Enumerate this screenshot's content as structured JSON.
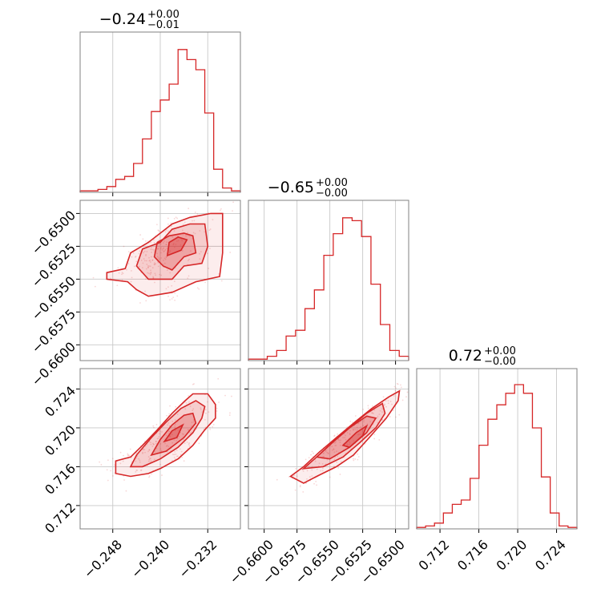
{
  "colors": {
    "accent": "#d62728",
    "fill": "#f2b7b8",
    "frame": "#808080",
    "grid": "#c8c8c8"
  },
  "chart_data": {
    "type": "corner",
    "grid": true,
    "parameters": [
      {
        "title": {
          "value": "−0.24",
          "plus": "+0.00",
          "minus": "−0.01"
        },
        "range": [
          -0.2535,
          -0.2265
        ],
        "ticks": [
          -0.248,
          -0.24,
          -0.232
        ],
        "tick_labels": [
          "−0.248",
          "−0.240",
          "−0.232"
        ],
        "histogram": [
          0.01,
          0.01,
          0.02,
          0.04,
          0.09,
          0.11,
          0.2,
          0.37,
          0.56,
          0.64,
          0.75,
          0.99,
          0.92,
          0.85,
          0.55,
          0.16,
          0.03,
          0.01
        ]
      },
      {
        "title": {
          "value": "−0.65",
          "plus": "+0.00",
          "minus": "−0.00"
        },
        "range": [
          -0.6612,
          -0.649
        ],
        "ticks": [
          -0.66,
          -0.6575,
          -0.655,
          -0.6525,
          -0.65
        ],
        "tick_labels": [
          "−0.6600",
          "−0.6575",
          "−0.6550",
          "−0.6525",
          "−0.6500"
        ],
        "histogram": [
          0.01,
          0.01,
          0.03,
          0.07,
          0.17,
          0.21,
          0.36,
          0.49,
          0.73,
          0.88,
          0.99,
          0.97,
          0.86,
          0.53,
          0.25,
          0.07,
          0.03
        ]
      },
      {
        "title": {
          "value": "0.72",
          "plus": "+0.00",
          "minus": "−0.00"
        },
        "range": [
          0.7096,
          0.7261
        ],
        "ticks": [
          0.712,
          0.716,
          0.72,
          0.724
        ],
        "tick_labels": [
          "0.712",
          "0.716",
          "0.720",
          "0.724"
        ],
        "histogram": [
          0.01,
          0.02,
          0.04,
          0.11,
          0.17,
          0.2,
          0.35,
          0.58,
          0.76,
          0.86,
          0.94,
          1.0,
          0.94,
          0.7,
          0.36,
          0.11,
          0.02,
          0.01
        ]
      }
    ],
    "pairs": [
      {
        "x": 0,
        "y": 1,
        "contours": [
          [
            [
              -0.2459,
              -0.6542
            ],
            [
              -0.245,
              -0.653
            ],
            [
              -0.242,
              -0.6522
            ],
            [
              -0.24,
              -0.6515
            ],
            [
              -0.238,
              -0.6508
            ],
            [
              -0.235,
              -0.6503
            ],
            [
              -0.2315,
              -0.65
            ],
            [
              -0.2295,
              -0.65
            ],
            [
              -0.2295,
              -0.653
            ],
            [
              -0.23,
              -0.6548
            ],
            [
              -0.234,
              -0.6552
            ],
            [
              -0.238,
              -0.656
            ],
            [
              -0.242,
              -0.6563
            ],
            [
              -0.244,
              -0.6558
            ],
            [
              -0.2455,
              -0.6552
            ],
            [
              -0.249,
              -0.655
            ],
            [
              -0.249,
              -0.6545
            ]
          ],
          [
            [
              -0.244,
              -0.654
            ],
            [
              -0.243,
              -0.6527
            ],
            [
              -0.24,
              -0.6522
            ],
            [
              -0.238,
              -0.6512
            ],
            [
              -0.235,
              -0.6508
            ],
            [
              -0.2325,
              -0.6508
            ],
            [
              -0.232,
              -0.6525
            ],
            [
              -0.233,
              -0.6538
            ],
            [
              -0.236,
              -0.654
            ],
            [
              -0.238,
              -0.655
            ],
            [
              -0.242,
              -0.655
            ]
          ],
          [
            [
              -0.241,
              -0.6533
            ],
            [
              -0.2405,
              -0.6522
            ],
            [
              -0.2385,
              -0.6517
            ],
            [
              -0.236,
              -0.6515
            ],
            [
              -0.2345,
              -0.6517
            ],
            [
              -0.234,
              -0.653
            ],
            [
              -0.236,
              -0.6533
            ],
            [
              -0.238,
              -0.6543
            ],
            [
              -0.2395,
              -0.654
            ]
          ],
          [
            [
              -0.2388,
              -0.6532
            ],
            [
              -0.2385,
              -0.6522
            ],
            [
              -0.237,
              -0.6518
            ],
            [
              -0.2355,
              -0.652
            ],
            [
              -0.2365,
              -0.6528
            ]
          ]
        ]
      },
      {
        "x": 0,
        "y": 2,
        "contours": [
          [
            [
              -0.2475,
              0.7153
            ],
            [
              -0.2475,
              0.7166
            ],
            [
              -0.245,
              0.717
            ],
            [
              -0.243,
              0.7182
            ],
            [
              -0.2405,
              0.7198
            ],
            [
              -0.238,
              0.7215
            ],
            [
              -0.2358,
              0.7228
            ],
            [
              -0.2345,
              0.7235
            ],
            [
              -0.232,
              0.7235
            ],
            [
              -0.2307,
              0.7224
            ],
            [
              -0.2307,
              0.721
            ],
            [
              -0.2325,
              0.7198
            ],
            [
              -0.2345,
              0.7182
            ],
            [
              -0.237,
              0.7168
            ],
            [
              -0.24,
              0.7158
            ],
            [
              -0.242,
              0.7153
            ],
            [
              -0.245,
              0.715
            ]
          ],
          [
            [
              -0.245,
              0.716
            ],
            [
              -0.244,
              0.7172
            ],
            [
              -0.2415,
              0.719
            ],
            [
              -0.239,
              0.7206
            ],
            [
              -0.2365,
              0.722
            ],
            [
              -0.234,
              0.7228
            ],
            [
              -0.2325,
              0.7222
            ],
            [
              -0.233,
              0.721
            ],
            [
              -0.2345,
              0.7195
            ],
            [
              -0.237,
              0.718
            ],
            [
              -0.24,
              0.7168
            ],
            [
              -0.243,
              0.716
            ]
          ],
          [
            [
              -0.2415,
              0.7172
            ],
            [
              -0.24,
              0.7188
            ],
            [
              -0.238,
              0.7203
            ],
            [
              -0.236,
              0.7213
            ],
            [
              -0.2345,
              0.7215
            ],
            [
              -0.234,
              0.7205
            ],
            [
              -0.236,
              0.719
            ],
            [
              -0.239,
              0.7176
            ]
          ],
          [
            [
              -0.2393,
              0.7186
            ],
            [
              -0.238,
              0.7197
            ],
            [
              -0.2362,
              0.7203
            ],
            [
              -0.2372,
              0.719
            ]
          ]
        ]
      },
      {
        "x": 1,
        "y": 2,
        "contours": [
          [
            [
              -0.658,
              0.715
            ],
            [
              -0.657,
              0.716
            ],
            [
              -0.6558,
              0.7175
            ],
            [
              -0.6545,
              0.719
            ],
            [
              -0.653,
              0.7207
            ],
            [
              -0.6518,
              0.722
            ],
            [
              -0.6505,
              0.7232
            ],
            [
              -0.6497,
              0.7238
            ],
            [
              -0.6498,
              0.7228
            ],
            [
              -0.6507,
              0.721
            ],
            [
              -0.652,
              0.719
            ],
            [
              -0.6532,
              0.7172
            ],
            [
              -0.6545,
              0.716
            ],
            [
              -0.656,
              0.715
            ],
            [
              -0.657,
              0.7143
            ]
          ],
          [
            [
              -0.657,
              0.7158
            ],
            [
              -0.656,
              0.717
            ],
            [
              -0.6548,
              0.7185
            ],
            [
              -0.6535,
              0.72
            ],
            [
              -0.6522,
              0.7215
            ],
            [
              -0.651,
              0.7225
            ],
            [
              -0.6508,
              0.7215
            ],
            [
              -0.6515,
              0.72
            ],
            [
              -0.6527,
              0.7185
            ],
            [
              -0.654,
              0.717
            ],
            [
              -0.6555,
              0.716
            ]
          ],
          [
            [
              -0.656,
              0.717
            ],
            [
              -0.6548,
              0.7185
            ],
            [
              -0.6535,
              0.72
            ],
            [
              -0.6522,
              0.7212
            ],
            [
              -0.6515,
              0.721
            ],
            [
              -0.6522,
              0.7195
            ],
            [
              -0.6535,
              0.718
            ],
            [
              -0.655,
              0.7168
            ]
          ],
          [
            [
              -0.654,
              0.7182
            ],
            [
              -0.653,
              0.7195
            ],
            [
              -0.6522,
              0.7202
            ],
            [
              -0.6525,
              0.7192
            ],
            [
              -0.6535,
              0.718
            ]
          ]
        ]
      }
    ]
  }
}
